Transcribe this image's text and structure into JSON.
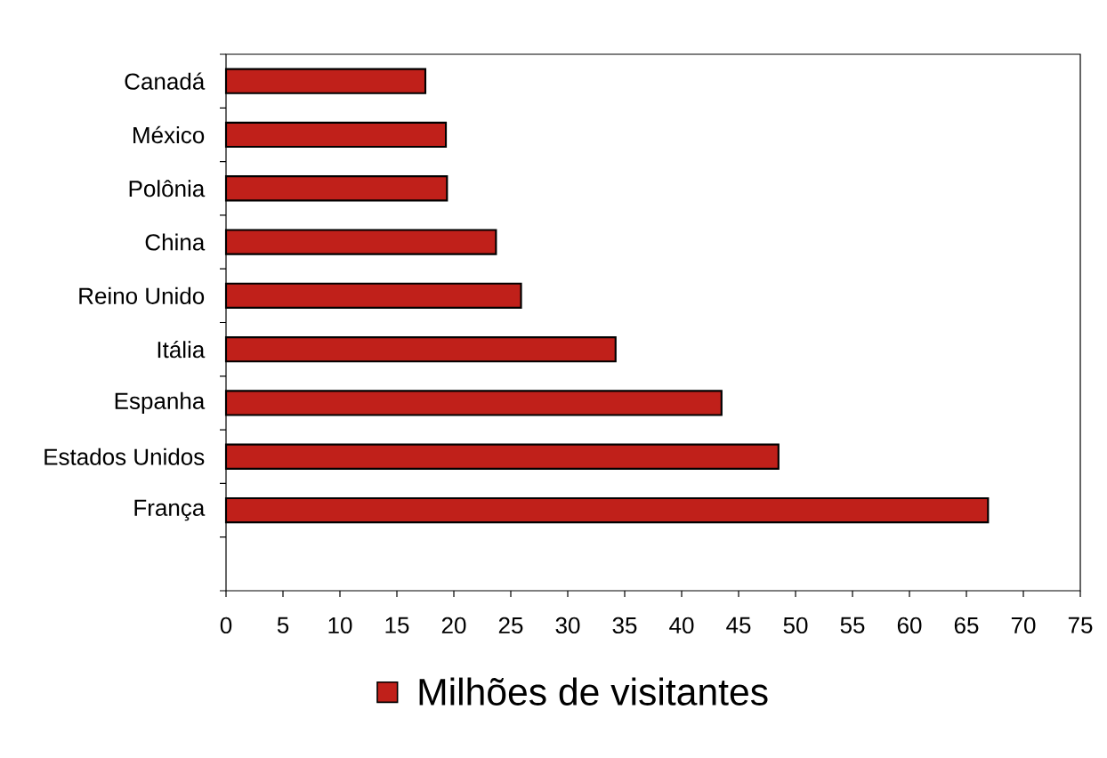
{
  "chart_data": {
    "type": "bar",
    "orientation": "horizontal",
    "categories": [
      "Canadá",
      "México",
      "Polônia",
      "China",
      "Reino Unido",
      "Itália",
      "Espanha",
      "Estados Unidos",
      "França",
      null
    ],
    "series": [
      {
        "name": "Milhões de visitantes",
        "color": "#c0201a",
        "values": [
          17.5,
          19.3,
          19.4,
          23.7,
          25.9,
          34.2,
          43.5,
          48.5,
          66.9,
          null
        ]
      }
    ],
    "xlim": [
      0,
      75
    ],
    "xticks": [
      0,
      5,
      10,
      15,
      20,
      25,
      30,
      35,
      40,
      45,
      50,
      55,
      60,
      65,
      70,
      75
    ],
    "legend": "bottom"
  }
}
